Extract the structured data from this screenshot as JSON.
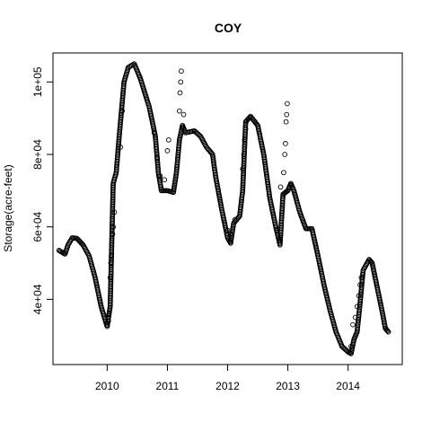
{
  "chart_data": {
    "type": "scatter",
    "title": "COY",
    "xlabel": "",
    "ylabel": "Storage(acre-feet)",
    "xlim": [
      2009.1,
      2014.9
    ],
    "ylim": [
      22000,
      108000
    ],
    "x_ticks": [
      {
        "value": 2010,
        "label": "2010"
      },
      {
        "value": 2011,
        "label": "2011"
      },
      {
        "value": 2012,
        "label": "2012"
      },
      {
        "value": 2013,
        "label": "2013"
      },
      {
        "value": 2014,
        "label": "2014"
      }
    ],
    "y_ticks": [
      {
        "value": 40000,
        "label": "4e+04"
      },
      {
        "value": 60000,
        "label": "6e+04"
      },
      {
        "value": 80000,
        "label": "8e+04"
      },
      {
        "value": 100000,
        "label": "1e+05"
      }
    ],
    "grid": false,
    "legend": "none",
    "marker": "open-circle",
    "color": "#000000",
    "series_trend": [
      [
        2009.2,
        53500
      ],
      [
        2009.25,
        53000
      ],
      [
        2009.3,
        52500
      ],
      [
        2009.35,
        55000
      ],
      [
        2009.42,
        57000
      ],
      [
        2009.5,
        56800
      ],
      [
        2009.6,
        55000
      ],
      [
        2009.7,
        52000
      ],
      [
        2009.8,
        46000
      ],
      [
        2009.9,
        38000
      ],
      [
        2010.0,
        32500
      ],
      [
        2010.05,
        38000
      ],
      [
        2010.1,
        72000
      ],
      [
        2010.15,
        75000
      ],
      [
        2010.2,
        85000
      ],
      [
        2010.28,
        100000
      ],
      [
        2010.35,
        104000
      ],
      [
        2010.45,
        105000
      ],
      [
        2010.55,
        101000
      ],
      [
        2010.7,
        93000
      ],
      [
        2010.8,
        85000
      ],
      [
        2010.85,
        75000
      ],
      [
        2010.9,
        70000
      ],
      [
        2011.0,
        70000
      ],
      [
        2011.1,
        69500
      ],
      [
        2011.15,
        75000
      ],
      [
        2011.2,
        84000
      ],
      [
        2011.25,
        88000
      ],
      [
        2011.3,
        86000
      ],
      [
        2011.45,
        86500
      ],
      [
        2011.55,
        85000
      ],
      [
        2011.65,
        82000
      ],
      [
        2011.75,
        80000
      ],
      [
        2011.8,
        74000
      ],
      [
        2011.9,
        65000
      ],
      [
        2012.0,
        57000
      ],
      [
        2012.05,
        55500
      ],
      [
        2012.1,
        61000
      ],
      [
        2012.2,
        63000
      ],
      [
        2012.25,
        70000
      ],
      [
        2012.3,
        89000
      ],
      [
        2012.38,
        90500
      ],
      [
        2012.5,
        88000
      ],
      [
        2012.6,
        80000
      ],
      [
        2012.7,
        68000
      ],
      [
        2012.8,
        60000
      ],
      [
        2012.87,
        55000
      ],
      [
        2012.92,
        69000
      ],
      [
        2013.0,
        70000
      ],
      [
        2013.05,
        72000
      ],
      [
        2013.1,
        70000
      ],
      [
        2013.2,
        64000
      ],
      [
        2013.3,
        59500
      ],
      [
        2013.4,
        59500
      ],
      [
        2013.5,
        52000
      ],
      [
        2013.6,
        44000
      ],
      [
        2013.7,
        37000
      ],
      [
        2013.8,
        31000
      ],
      [
        2013.9,
        27000
      ],
      [
        2014.0,
        25500
      ],
      [
        2014.05,
        25000
      ],
      [
        2014.1,
        29000
      ],
      [
        2014.15,
        31000
      ],
      [
        2014.2,
        39000
      ],
      [
        2014.25,
        48000
      ],
      [
        2014.35,
        51000
      ],
      [
        2014.4,
        50000
      ],
      [
        2014.45,
        46000
      ],
      [
        2014.55,
        38000
      ],
      [
        2014.62,
        32000
      ],
      [
        2014.67,
        31000
      ]
    ],
    "series_spikes": [
      [
        2010.02,
        34000
      ],
      [
        2010.03,
        36000
      ],
      [
        2010.05,
        46000
      ],
      [
        2010.06,
        50000
      ],
      [
        2010.07,
        52000
      ],
      [
        2010.09,
        58000
      ],
      [
        2010.1,
        60000
      ],
      [
        2010.12,
        64000
      ],
      [
        2010.22,
        82000
      ],
      [
        2010.25,
        92000
      ],
      [
        2010.78,
        86000
      ],
      [
        2010.83,
        79000
      ],
      [
        2010.88,
        74000
      ],
      [
        2010.95,
        73000
      ],
      [
        2011.0,
        81000
      ],
      [
        2011.02,
        84000
      ],
      [
        2011.2,
        92000
      ],
      [
        2011.21,
        97000
      ],
      [
        2011.22,
        100000
      ],
      [
        2011.23,
        103000
      ],
      [
        2011.27,
        91000
      ],
      [
        2012.0,
        59000
      ],
      [
        2012.05,
        58000
      ],
      [
        2012.12,
        62000
      ],
      [
        2012.25,
        76000
      ],
      [
        2012.27,
        80000
      ],
      [
        2012.28,
        84000
      ],
      [
        2012.3,
        87000
      ],
      [
        2012.82,
        59000
      ],
      [
        2012.88,
        71000
      ],
      [
        2012.93,
        75000
      ],
      [
        2012.95,
        80000
      ],
      [
        2012.96,
        83000
      ],
      [
        2012.97,
        89000
      ],
      [
        2012.98,
        91000
      ],
      [
        2012.99,
        94000
      ],
      [
        2014.05,
        27000
      ],
      [
        2014.08,
        33000
      ],
      [
        2014.12,
        35000
      ],
      [
        2014.15,
        38000
      ],
      [
        2014.18,
        41000
      ],
      [
        2014.2,
        44000
      ],
      [
        2014.22,
        46000
      ]
    ]
  }
}
